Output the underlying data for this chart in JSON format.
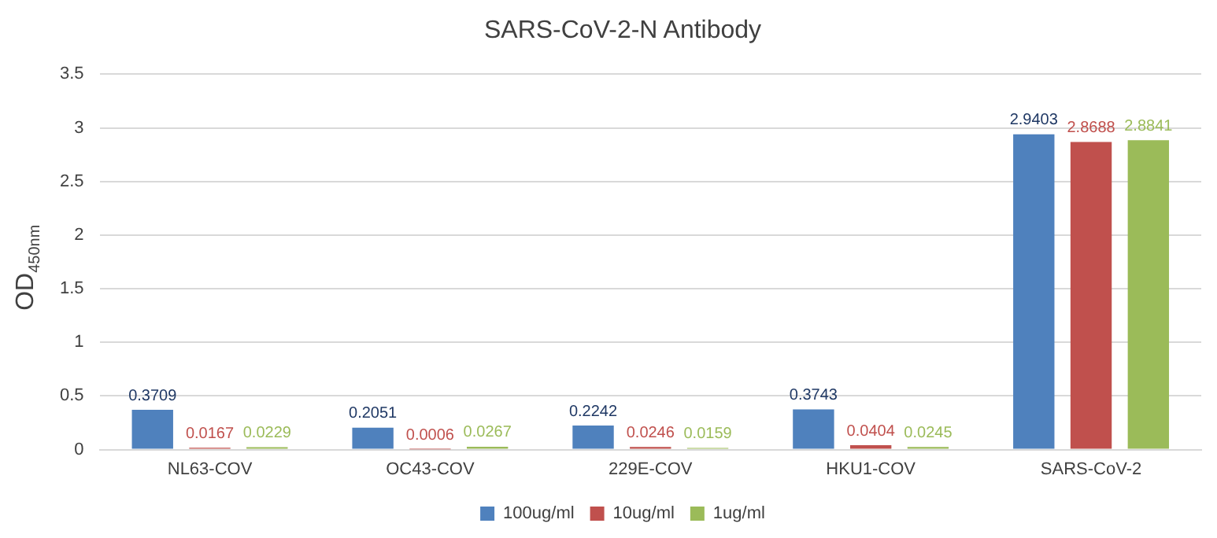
{
  "chart_data": {
    "type": "bar",
    "title": "SARS-CoV-2-N Antibody",
    "ylabel": "OD$_{450nm}$",
    "categories": [
      "NL63-COV",
      "OC43-COV",
      "229E-COV",
      "HKU1-COV",
      "SARS-CoV-2"
    ],
    "series": [
      {
        "name": "100ug/ml",
        "color": "#4f81bd",
        "values": [
          0.3709,
          0.2051,
          0.2242,
          0.3743,
          2.9403
        ]
      },
      {
        "name": "10ug/ml",
        "color": "#c0504d",
        "values": [
          0.0167,
          0.0006,
          0.0246,
          0.0404,
          2.8688
        ]
      },
      {
        "name": "1ug/ml",
        "color": "#9bbb59",
        "values": [
          0.0229,
          0.0267,
          0.0159,
          0.0245,
          2.8841
        ]
      }
    ],
    "ylim": [
      0,
      3.5
    ],
    "yticks": [
      0,
      0.5,
      1,
      1.5,
      2,
      2.5,
      3,
      3.5
    ],
    "grid": "y",
    "legend": "bottom",
    "data_labels": true
  }
}
